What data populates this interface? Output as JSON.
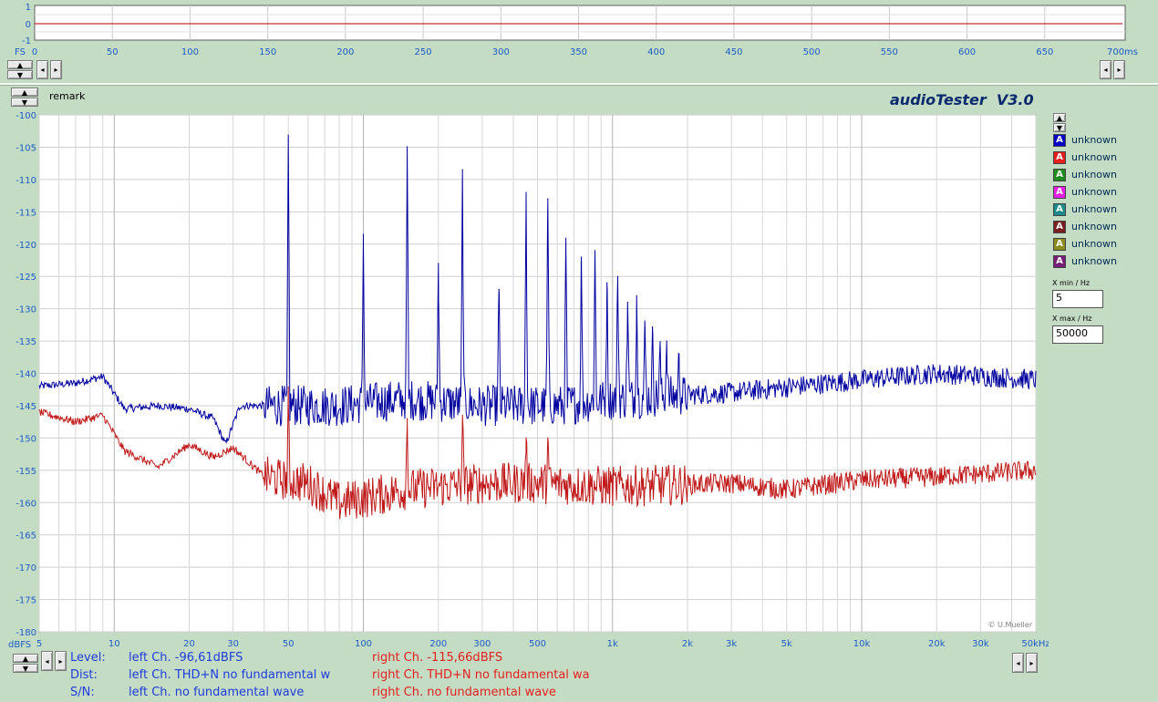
{
  "app": {
    "title": "audioTester  V3.0",
    "remark": "remark",
    "copyright": "© U.Mueller"
  },
  "time_plot": {
    "y_ticks": [
      "1",
      "0",
      "-1"
    ],
    "y_unit": "FS",
    "x_ticks": [
      "0",
      "50",
      "100",
      "150",
      "200",
      "250",
      "300",
      "350",
      "400",
      "450",
      "500",
      "550",
      "600",
      "650",
      "700ms"
    ]
  },
  "spectrum": {
    "y_unit": "dBFS",
    "x_unit_label": "50kHz"
  },
  "legend": [
    {
      "label": "unknown",
      "color": "#0000c8"
    },
    {
      "label": "unknown",
      "color": "#e61e1e"
    },
    {
      "label": "unknown",
      "color": "#1e8c1e"
    },
    {
      "label": "unknown",
      "color": "#e61ee6"
    },
    {
      "label": "unknown",
      "color": "#1e8c8c"
    },
    {
      "label": "unknown",
      "color": "#781e1e"
    },
    {
      "label": "unknown",
      "color": "#8c8c1e"
    },
    {
      "label": "unknown",
      "color": "#781e78"
    }
  ],
  "xrange": {
    "min_label": "X min / Hz",
    "min_value": "5",
    "max_label": "X max / Hz",
    "max_value": "50000"
  },
  "info": {
    "level_label": "Level:",
    "dist_label": "Dist:",
    "sn_label": "S/N:",
    "left_level": "left Ch. -96,61dBFS",
    "right_level": "right Ch. -115,66dBFS",
    "left_dist": "left Ch. THD+N  no fundamental w",
    "right_dist": "right Ch. THD+N  no fundamental wa",
    "left_sn": "left Ch.  no fundamental wave",
    "right_sn": "right Ch.  no fundamental wave"
  },
  "chart_data": {
    "type": "line",
    "xlabel": "",
    "ylabel": "dBFS",
    "xscale": "log",
    "xlim": [
      5,
      50000
    ],
    "ylim": [
      -180,
      -100
    ],
    "grid": true,
    "y_ticks": [
      -100,
      -105,
      -110,
      -115,
      -120,
      -125,
      -130,
      -135,
      -140,
      -145,
      -150,
      -155,
      -160,
      -165,
      -170,
      -175,
      -180
    ],
    "x_tick_labels": [
      "5",
      "10",
      "20",
      "30",
      "50",
      "100",
      "200",
      "300",
      "500",
      "1k",
      "2k",
      "3k",
      "5k",
      "10k",
      "20k",
      "30k",
      "50kHz"
    ],
    "x_tick_values": [
      5,
      10,
      20,
      30,
      50,
      100,
      200,
      300,
      500,
      1000,
      2000,
      3000,
      5000,
      10000,
      20000,
      30000,
      50000
    ],
    "series": [
      {
        "color": "#0000a0",
        "baseline": [
          [
            5,
            -142
          ],
          [
            7,
            -141.5
          ],
          [
            9,
            -140.5
          ],
          [
            11,
            -145.5
          ],
          [
            15,
            -145
          ],
          [
            20,
            -145.5
          ],
          [
            25,
            -147
          ],
          [
            28,
            -151
          ],
          [
            32,
            -145
          ],
          [
            45,
            -145
          ],
          [
            80,
            -145
          ],
          [
            150,
            -144
          ],
          [
            300,
            -145
          ],
          [
            600,
            -145
          ],
          [
            1000,
            -144
          ],
          [
            3000,
            -143
          ],
          [
            10000,
            -141
          ],
          [
            20000,
            -140
          ],
          [
            50000,
            -141
          ]
        ],
        "peaks": [
          [
            50,
            -104
          ],
          [
            100,
            -118.5
          ],
          [
            150,
            -105.5
          ],
          [
            200,
            -123
          ],
          [
            250,
            -108.5
          ],
          [
            350,
            -127
          ],
          [
            450,
            -112
          ],
          [
            550,
            -113
          ],
          [
            650,
            -120
          ],
          [
            750,
            -122
          ],
          [
            850,
            -121
          ],
          [
            950,
            -126
          ],
          [
            1050,
            -125
          ],
          [
            1150,
            -129
          ],
          [
            1250,
            -128
          ],
          [
            1350,
            -133
          ],
          [
            1450,
            -134
          ],
          [
            1550,
            -136
          ],
          [
            1650,
            -135
          ],
          [
            1850,
            -137
          ]
        ]
      },
      {
        "color": "#c01818",
        "baseline": [
          [
            5,
            -146
          ],
          [
            7,
            -147.5
          ],
          [
            9,
            -146.5
          ],
          [
            11,
            -152
          ],
          [
            15,
            -154.5
          ],
          [
            20,
            -151
          ],
          [
            25,
            -153
          ],
          [
            30,
            -151.5
          ],
          [
            40,
            -156
          ],
          [
            60,
            -157
          ],
          [
            80,
            -160
          ],
          [
            150,
            -158
          ],
          [
            300,
            -157
          ],
          [
            500,
            -157
          ],
          [
            1000,
            -157.5
          ],
          [
            3000,
            -157
          ],
          [
            5000,
            -158
          ],
          [
            10000,
            -156.5
          ],
          [
            20000,
            -156
          ],
          [
            50000,
            -155
          ]
        ],
        "peaks": [
          [
            50,
            -145
          ],
          [
            150,
            -147
          ],
          [
            250,
            -146.5
          ],
          [
            450,
            -150
          ],
          [
            550,
            -150
          ]
        ]
      }
    ]
  }
}
